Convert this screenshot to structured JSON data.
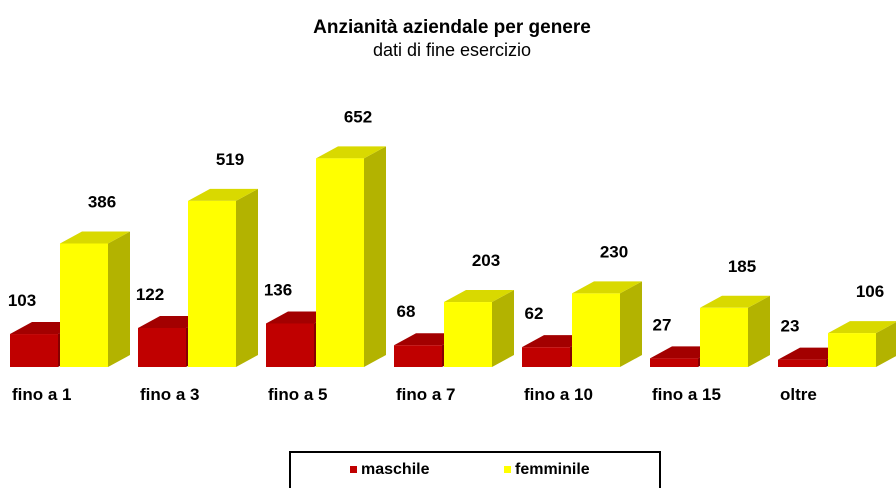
{
  "chart_data": {
    "type": "bar3d",
    "title": "Anzianità aziendale per genere",
    "subtitle": "dati di fine esercizio",
    "categories": [
      "fino a 1",
      "fino a 3",
      "fino a 5",
      "fino a 7",
      "fino a 10",
      "fino a 15",
      "oltre"
    ],
    "series": [
      {
        "name": "maschile",
        "color": "#c00000",
        "values": [
          103,
          122,
          136,
          68,
          62,
          27,
          23
        ]
      },
      {
        "name": "femminile",
        "color": "#ffff00",
        "values": [
          386,
          519,
          652,
          203,
          230,
          185,
          106
        ]
      }
    ],
    "legend": "bottom"
  }
}
